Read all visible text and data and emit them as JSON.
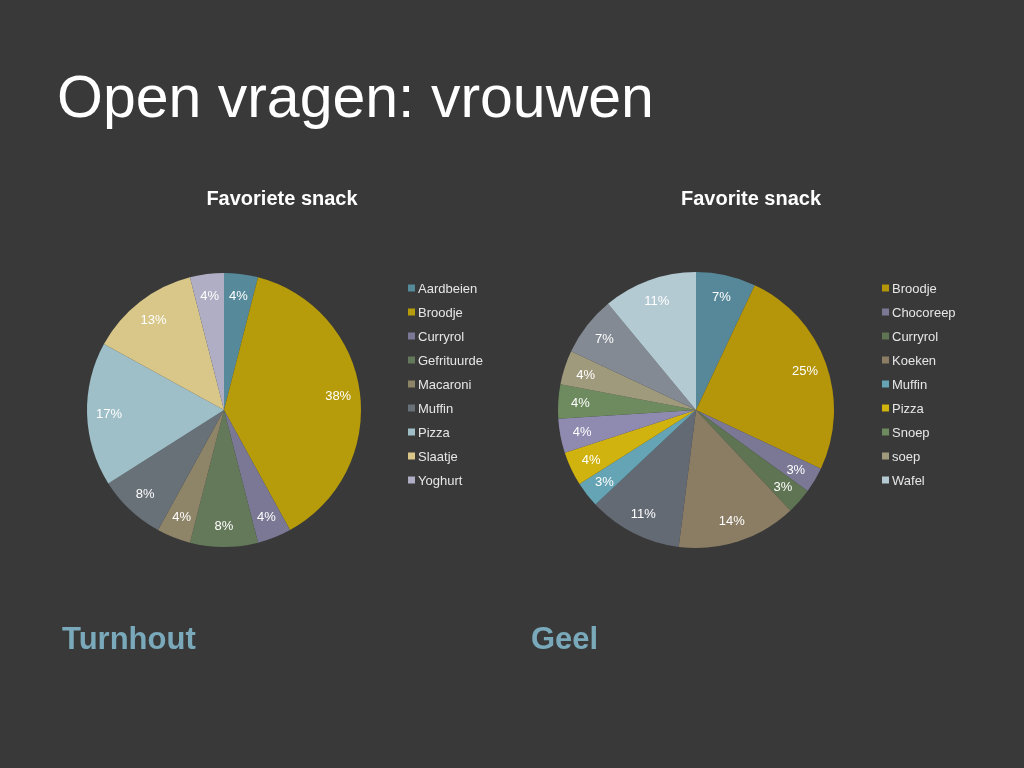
{
  "chart_data": [
    {
      "type": "pie",
      "title": "Favoriete snack",
      "categories": [
        "Aardbeien",
        "Broodje",
        "Curryrol",
        "Gefrituurde",
        "Macaroni",
        "Muffin",
        "Pizza",
        "Slaatje",
        "Yoghurt"
      ],
      "values": [
        4,
        38,
        4,
        8,
        4,
        8,
        17,
        13,
        4
      ],
      "colors": [
        "#568a9a",
        "#b69c0a",
        "#7b7896",
        "#64795a",
        "#8e8468",
        "#687078",
        "#9fbfc8",
        "#d8c788",
        "#afaec4"
      ],
      "value_labels": [
        "4%",
        "38%",
        "4%",
        "8%",
        "4%",
        "8%",
        "17%",
        "13%",
        "4%"
      ],
      "legend": "right",
      "annotations": [
        "Open vragen: vrouwen",
        "Turnhout"
      ]
    },
    {
      "type": "pie",
      "title": "Favorite snack",
      "categories": [
        null,
        "Broodje",
        "Chocoreep",
        "Curryrol",
        "Koeken",
        null,
        "Muffin",
        "Pizza",
        null,
        "Snoep",
        "soep",
        null,
        "Wafel"
      ],
      "values": [
        7,
        25,
        3,
        3,
        14,
        11,
        3,
        4,
        4,
        4,
        4,
        7,
        11
      ],
      "colors": [
        "#56889a",
        "#b5950a",
        "#7b7896",
        "#5f7452",
        "#8a7d63",
        "#646a74",
        "#65a4b5",
        "#d0b30f",
        "#8f8ab0",
        "#6e8b5f",
        "#a09a7d",
        "#838a93",
        "#b4cad3"
      ],
      "value_labels": [
        "7%",
        "25%",
        "3%",
        "3%",
        "14%",
        "11%",
        "3%",
        "4%",
        "4%",
        "4%",
        "4%",
        "7%",
        "11%"
      ],
      "legend": "right",
      "annotations": [
        "Geel"
      ]
    }
  ]
}
